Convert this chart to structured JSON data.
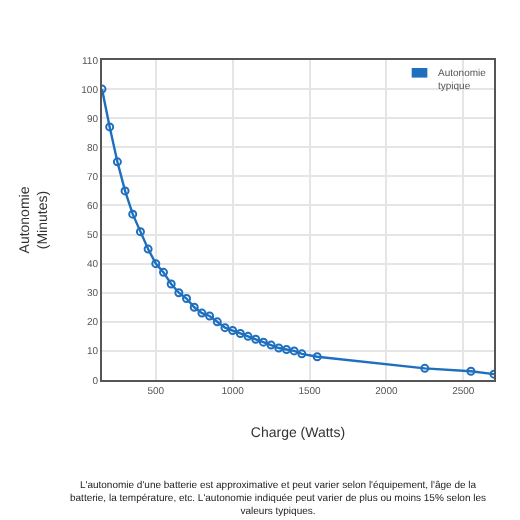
{
  "chart_data": {
    "type": "line",
    "xlabel": "Charge (Watts)",
    "ylabel": "Autonomie (Minutes)",
    "series": [
      {
        "name": "Autonomie typique",
        "color": "#1f6fbf",
        "x": [
          150,
          200,
          250,
          300,
          350,
          400,
          450,
          500,
          550,
          600,
          650,
          700,
          750,
          800,
          850,
          900,
          950,
          1000,
          1050,
          1100,
          1150,
          1200,
          1250,
          1300,
          1350,
          1400,
          1450,
          1550,
          2250,
          2550,
          2700
        ],
        "values": [
          100,
          87,
          75,
          65,
          57,
          51,
          45,
          40,
          37,
          33,
          30,
          28,
          25,
          23,
          22,
          20,
          18,
          17,
          16,
          15,
          14,
          13,
          12,
          11,
          10.5,
          10,
          9,
          8,
          4,
          3,
          2
        ]
      }
    ],
    "xlim": [
      150,
      2700
    ],
    "xticks": [
      500,
      1000,
      1500,
      2000,
      2500
    ],
    "ylim": [
      0,
      110
    ],
    "yticks": [
      0,
      10,
      20,
      30,
      40,
      50,
      60,
      70,
      80,
      90,
      100,
      110
    ],
    "grid": true,
    "legend": "top right",
    "marker": "circle",
    "line_style": "solid",
    "annotations": [
      "L'autonomie d'une batterie est approximative et peut varier selon l'équipement, l'âge de la batterie, la température, etc. L'autonomie indiquée peut varier de plus ou moins 15% selon les valeurs typiques."
    ]
  }
}
